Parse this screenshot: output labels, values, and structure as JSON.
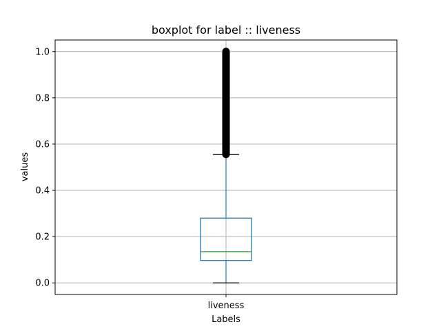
{
  "chart_data": {
    "type": "boxplot",
    "title": "boxplot for label :: liveness",
    "xlabel": "Labels",
    "ylabel": "values",
    "categories": [
      "liveness"
    ],
    "ylim": [
      -0.05,
      1.05
    ],
    "yticks": [
      "0.0",
      "0.2",
      "0.4",
      "0.6",
      "0.8",
      "1.0"
    ],
    "grid": true,
    "boxes": [
      {
        "name": "liveness",
        "whisker_low": 0.0,
        "q1": 0.097,
        "median": 0.135,
        "q3": 0.28,
        "whisker_high": 0.555,
        "outliers_range": [
          0.556,
          1.0
        ]
      }
    ],
    "colors": {
      "box": "#1f77b4",
      "median": "#2ca02c",
      "whisker_cap": "#000000",
      "outlier": "#000000",
      "grid": "#b0b0b0"
    }
  }
}
